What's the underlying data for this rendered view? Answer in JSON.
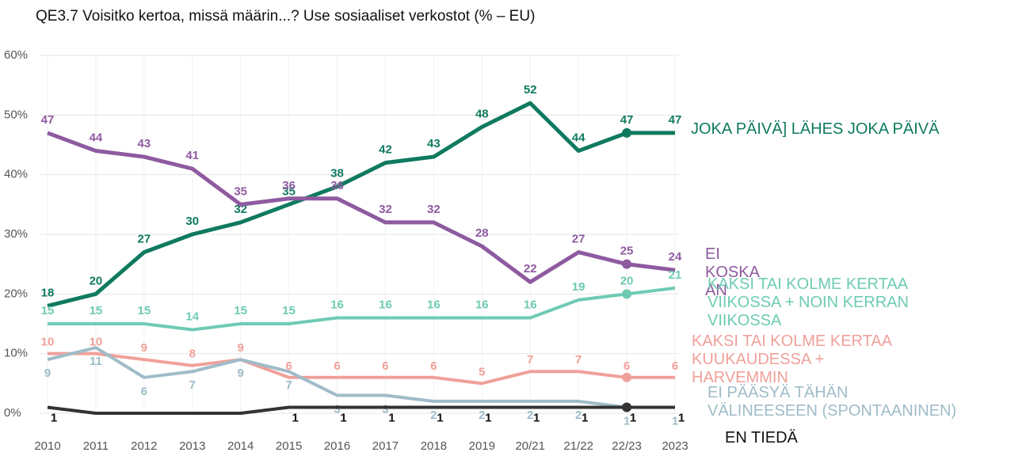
{
  "chart_data": {
    "type": "line",
    "title": "QE3.7 Voisitko kertoa, missä määrin...? Use sosiaaliset verkostot (% – EU)",
    "categories": [
      "2010",
      "2011",
      "2012",
      "2013",
      "2014",
      "2015",
      "2016",
      "2017",
      "2018",
      "2019",
      "20/21",
      "21/22",
      "22/23",
      "2023"
    ],
    "ylim": [
      0,
      60
    ],
    "yticks": [
      {
        "value": 0,
        "label": "0%"
      },
      {
        "value": 10,
        "label": "10%"
      },
      {
        "value": 20,
        "label": "20%"
      },
      {
        "value": 30,
        "label": "30%"
      },
      {
        "value": 40,
        "label": "40%"
      },
      {
        "value": 50,
        "label": "50%"
      },
      {
        "value": 60,
        "label": "60%"
      }
    ],
    "grid": true,
    "series": [
      {
        "name": "JOKA PÄIVÄ] LÄHES JOKA PÄIVÄ",
        "color": "#0f7a5f",
        "values": [
          18,
          20,
          27,
          30,
          32,
          35,
          38,
          42,
          43,
          48,
          52,
          44,
          47,
          47
        ]
      },
      {
        "name": "EI KOSKA AN",
        "color": "#8e5aa0",
        "values": [
          47,
          44,
          43,
          41,
          35,
          36,
          36,
          32,
          32,
          28,
          22,
          27,
          25,
          24
        ]
      },
      {
        "name": "KAKSI TAI KOLME KERTAA VIIKOSSA + NOIN KERRAN VIIKOSSA",
        "color": "#6ecbb3",
        "values": [
          15,
          15,
          15,
          14,
          15,
          15,
          16,
          16,
          16,
          16,
          16,
          19,
          20,
          21
        ]
      },
      {
        "name": "KAKSI TAI KOLME KERTAA KUUKAUDESSA + HARVEMMIN",
        "color": "#f0a09a",
        "values": [
          10,
          10,
          9,
          8,
          9,
          6,
          6,
          6,
          6,
          5,
          7,
          7,
          6,
          6
        ]
      },
      {
        "name": "EI PÄÄSYÄ TÄHÄN VÄLINEESEEN (SPONTAANINEN)",
        "color": "#9fbcc8",
        "values": [
          9,
          11,
          6,
          7,
          9,
          7,
          3,
          3,
          2,
          2,
          2,
          2,
          1,
          1
        ]
      },
      {
        "name": "EN TIEDÄ",
        "color": "#333333",
        "values": [
          1,
          0,
          0,
          0,
          0,
          1,
          1,
          1,
          1,
          1,
          1,
          1,
          1,
          1
        ],
        "value_labels": [
          "1",
          null,
          null,
          null,
          null,
          "1",
          "1",
          "1",
          "1",
          "1",
          "1",
          "1",
          "1",
          "1"
        ]
      }
    ]
  }
}
